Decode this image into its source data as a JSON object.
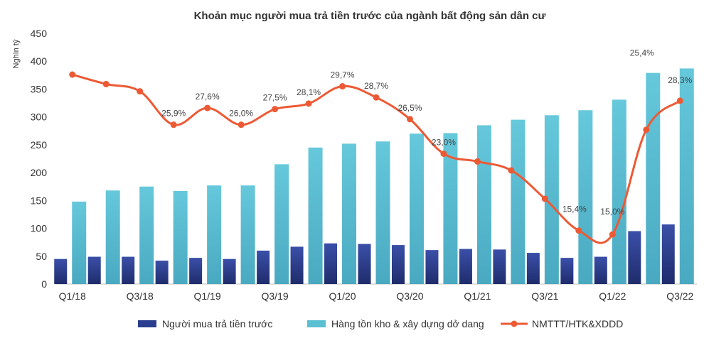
{
  "chart_data": {
    "type": "bar",
    "title": "Khoản mục người mua trả tiền trước của ngành bất động sản dân cư",
    "ylabel": "Nghìn tỷ",
    "ylim": [
      0,
      450
    ],
    "yticks": [
      0,
      50,
      100,
      150,
      200,
      250,
      300,
      350,
      400,
      450
    ],
    "categories": [
      "Q1/18",
      "Q2/18",
      "Q3/18",
      "Q4/18",
      "Q1/19",
      "Q2/19",
      "Q3/19",
      "Q4/19",
      "Q1/20",
      "Q2/20",
      "Q3/20",
      "Q4/20",
      "Q1/21",
      "Q2/21",
      "Q3/21",
      "Q4/21",
      "Q1/22",
      "Q2/22",
      "Q3/22"
    ],
    "xtick_labels": [
      "Q1/18",
      "",
      "Q3/18",
      "",
      "Q1/19",
      "",
      "Q3/19",
      "",
      "Q1/20",
      "",
      "Q3/20",
      "",
      "Q1/21",
      "",
      "Q3/21",
      "",
      "Q1/22",
      "",
      "Q3/22"
    ],
    "series": [
      {
        "name": "Người mua trả tiền trước",
        "kind": "bar",
        "color": "#2b3d8f",
        "values": [
          45,
          49,
          49,
          42,
          47,
          45,
          60,
          67,
          73,
          72,
          70,
          61,
          63,
          62,
          56,
          47,
          49,
          95,
          107
        ]
      },
      {
        "name": "Hàng tồn kho & xây dựng dở dang",
        "kind": "bar",
        "color": "#5bbfd2",
        "values": [
          148,
          168,
          175,
          167,
          177,
          177,
          215,
          245,
          252,
          256,
          270,
          271,
          285,
          295,
          303,
          312,
          331,
          379,
          387
        ]
      },
      {
        "name": "NMTTT/HTK&XDDD",
        "kind": "line",
        "color": "#ec5a35",
        "values": [
          376,
          359,
          346,
          286,
          316,
          286,
          314,
          324,
          355,
          335,
          296,
          234,
          220,
          204,
          153,
          96,
          89,
          277,
          329
        ],
        "labels": [
          "",
          "",
          "",
          "25,9%",
          "27,6%",
          "26,0%",
          "27,5%",
          "28,1%",
          "29,7%",
          "28,7%",
          "26,5%",
          "23,0%",
          "",
          "",
          "",
          "15,4%",
          "15,0%",
          "25,4%",
          "28,3%"
        ]
      }
    ],
    "legend_position": "bottom",
    "grid": false
  }
}
